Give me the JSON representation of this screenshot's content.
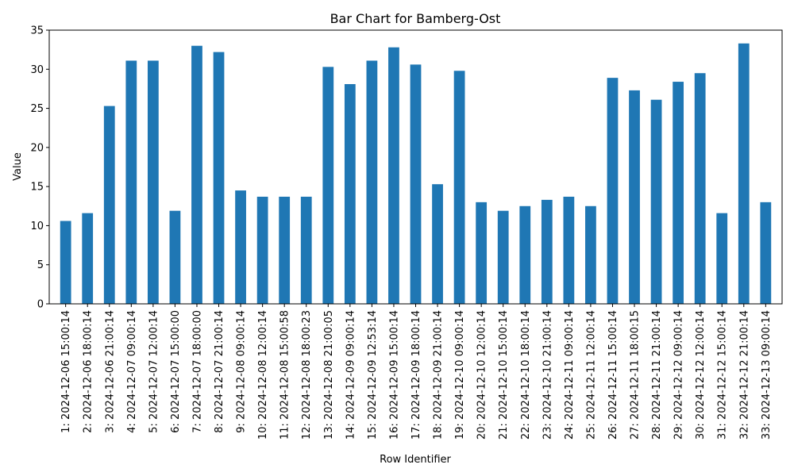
{
  "chart_data": {
    "type": "bar",
    "title": "Bar Chart for Bamberg-Ost",
    "xlabel": "Row Identifier",
    "ylabel": "Value",
    "ylim": [
      0,
      35
    ],
    "yticks": [
      0,
      5,
      10,
      15,
      20,
      25,
      30,
      35
    ],
    "bar_color": "#1f77b4",
    "grid": false,
    "legend": "none",
    "categories": [
      "1: 2024-12-06 15:00:14",
      "2: 2024-12-06 18:00:14",
      "3: 2024-12-06 21:00:14",
      "4: 2024-12-07 09:00:14",
      "5: 2024-12-07 12:00:14",
      "6: 2024-12-07 15:00:00",
      "7: 2024-12-07 18:00:00",
      "8: 2024-12-07 21:00:14",
      "9: 2024-12-08 09:00:14",
      "10: 2024-12-08 12:00:14",
      "11: 2024-12-08 15:00:58",
      "12: 2024-12-08 18:00:23",
      "13: 2024-12-08 21:00:05",
      "14: 2024-12-09 09:00:14",
      "15: 2024-12-09 12:53:14",
      "16: 2024-12-09 15:00:14",
      "17: 2024-12-09 18:00:14",
      "18: 2024-12-09 21:00:14",
      "19: 2024-12-10 09:00:14",
      "20: 2024-12-10 12:00:14",
      "21: 2024-12-10 15:00:14",
      "22: 2024-12-10 18:00:14",
      "23: 2024-12-10 21:00:14",
      "24: 2024-12-11 09:00:14",
      "25: 2024-12-11 12:00:14",
      "26: 2024-12-11 15:00:14",
      "27: 2024-12-11 18:00:15",
      "28: 2024-12-11 21:00:14",
      "29: 2024-12-12 09:00:14",
      "30: 2024-12-12 12:00:14",
      "31: 2024-12-12 15:00:14",
      "32: 2024-12-12 21:00:14",
      "33: 2024-12-13 09:00:14"
    ],
    "values": [
      10.6,
      11.6,
      25.3,
      31.1,
      31.1,
      11.9,
      33.0,
      32.2,
      14.5,
      13.7,
      13.7,
      13.7,
      30.3,
      28.1,
      31.1,
      32.8,
      30.6,
      15.3,
      29.8,
      13.0,
      11.9,
      12.5,
      13.3,
      13.7,
      12.5,
      28.9,
      27.3,
      26.1,
      28.4,
      29.5,
      11.6,
      33.3,
      13.0
    ]
  }
}
